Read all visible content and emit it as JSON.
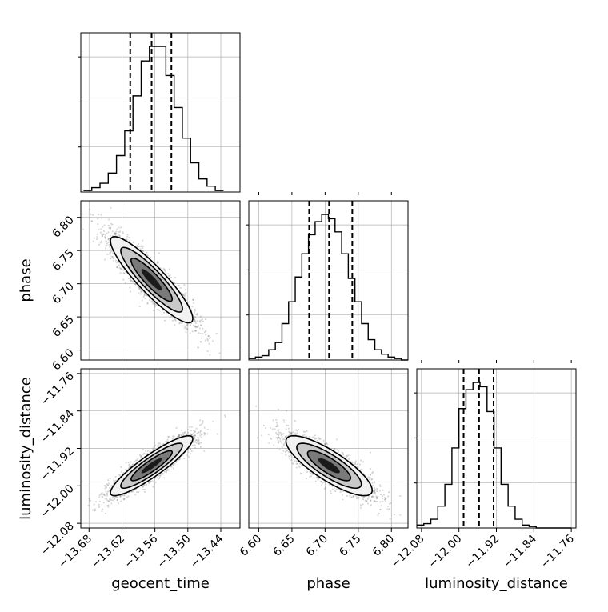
{
  "chart_data": {
    "type": "corner",
    "title": "",
    "parameters": [
      "geocent_time",
      "phase",
      "luminosity_distance"
    ],
    "ranges": {
      "geocent_time": [
        -13.695,
        -13.405
      ],
      "phase": [
        6.585,
        6.825
      ],
      "luminosity_distance": [
        -12.09,
        -11.75
      ]
    },
    "ticks": {
      "geocent_time": {
        "values": [
          -13.68,
          -13.62,
          -13.56,
          -13.5,
          -13.44
        ],
        "labels": [
          "−13.68",
          "−13.62",
          "−13.56",
          "−13.50",
          "−13.44"
        ]
      },
      "phase": {
        "values": [
          6.6,
          6.65,
          6.7,
          6.75,
          6.8
        ],
        "labels": [
          "6.60",
          "6.65",
          "6.70",
          "6.75",
          "6.80"
        ]
      },
      "luminosity_distance": {
        "values": [
          -12.08,
          -12.0,
          -11.92,
          -11.84,
          -11.76
        ],
        "labels": [
          "−12.08",
          "−12.00",
          "−11.92",
          "−11.84",
          "−11.76"
        ]
      }
    },
    "histograms": [
      {
        "parameter": "geocent_time",
        "bin_edges": [
          -13.69,
          -13.675,
          -13.66,
          -13.645,
          -13.63,
          -13.615,
          -13.6,
          -13.585,
          -13.57,
          -13.555,
          -13.54,
          -13.525,
          -13.51,
          -13.495,
          -13.48,
          -13.465,
          -13.45,
          -13.435
        ],
        "counts": [
          1,
          3,
          6,
          13,
          25,
          42,
          66,
          90,
          100,
          100,
          80,
          58,
          37,
          20,
          9,
          4,
          1
        ],
        "quantiles": [
          -13.605,
          -13.566,
          -13.53
        ]
      },
      {
        "parameter": "phase",
        "bin_edges": [
          6.585,
          6.595,
          6.605,
          6.615,
          6.625,
          6.635,
          6.645,
          6.655,
          6.665,
          6.675,
          6.685,
          6.695,
          6.705,
          6.715,
          6.725,
          6.735,
          6.745,
          6.755,
          6.765,
          6.775,
          6.785,
          6.795,
          6.805,
          6.815,
          6.825
        ],
        "counts": [
          1,
          2,
          3,
          7,
          12,
          25,
          40,
          57,
          73,
          86,
          95,
          100,
          97,
          88,
          73,
          56,
          40,
          25,
          14,
          7,
          4,
          2,
          1,
          0
        ],
        "quantiles": [
          6.676,
          6.706,
          6.741
        ]
      },
      {
        "parameter": "luminosity_distance",
        "bin_edges": [
          -12.09,
          -12.075,
          -12.06,
          -12.045,
          -12.03,
          -12.015,
          -12.0,
          -11.985,
          -11.97,
          -11.955,
          -11.94,
          -11.925,
          -11.91,
          -11.895,
          -11.88,
          -11.865,
          -11.85,
          -11.835,
          -11.82,
          -11.805,
          -11.79,
          -11.775,
          -11.76
        ],
        "counts": [
          2,
          3,
          6,
          15,
          30,
          55,
          82,
          95,
          100,
          97,
          80,
          55,
          30,
          15,
          6,
          2,
          1,
          0,
          0,
          0,
          0,
          0
        ],
        "quantiles": [
          -11.99,
          -11.957,
          -11.926
        ]
      }
    ],
    "correlations": [
      {
        "x": "geocent_time",
        "y": "phase",
        "rho": -0.9
      },
      {
        "x": "geocent_time",
        "y": "luminosity_distance",
        "rho": 0.9
      },
      {
        "x": "phase",
        "y": "luminosity_distance",
        "rho": -0.82
      }
    ],
    "grid": true,
    "colors": {
      "lines": "#000000",
      "grid": "#b0b0b0",
      "points": "#555555",
      "density": "#000000"
    }
  }
}
